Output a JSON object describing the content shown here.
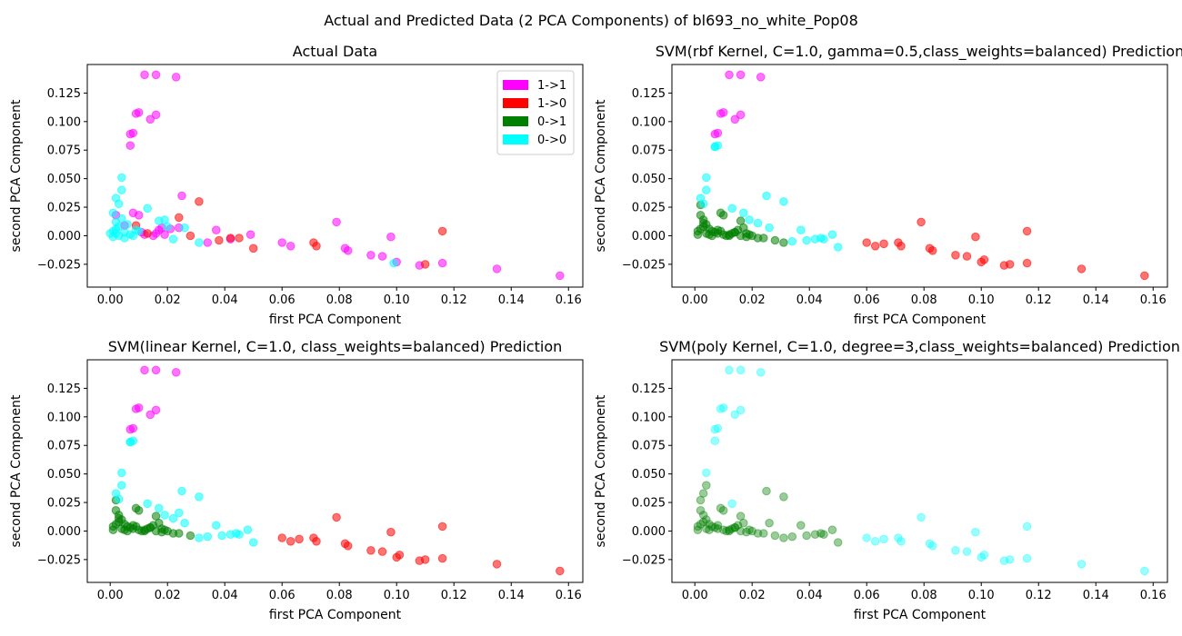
{
  "figure": {
    "suptitle": "Actual and Predicted Data (2 PCA Components) of bl693_no_white_Pop08"
  },
  "colors": {
    "1->1": "#ff00ff",
    "1->0": "#ff0000",
    "0->1": "#008000",
    "0->0": "#00ffff"
  },
  "legend": {
    "placement": "upper-right",
    "entries": [
      "1->1",
      "1->0",
      "0->1",
      "0->0"
    ]
  },
  "chart_data": [
    {
      "type": "scatter",
      "title": "Actual Data",
      "xlabel": "first PCA Component",
      "ylabel": "second PCA Component",
      "xlim": [
        -0.008,
        0.165
      ],
      "ylim": [
        -0.045,
        0.15
      ],
      "xticks": [
        "0.00",
        "0.02",
        "0.04",
        "0.06",
        "0.08",
        "0.10",
        "0.12",
        "0.14",
        "0.16"
      ],
      "yticks": [
        "−0.025",
        "0.000",
        "0.025",
        "0.050",
        "0.075",
        "0.100",
        "0.125"
      ],
      "legend": true,
      "alpha": 0.55,
      "series": [
        {
          "name": "1->1",
          "x": [
            0.012,
            0.016,
            0.023,
            0.009,
            0.01,
            0.016,
            0.014,
            0.008,
            0.007,
            0.007,
            0.025,
            0.01,
            0.008,
            0.012,
            0.016,
            0.018,
            0.002,
            0.005,
            0.011,
            0.017,
            0.019,
            0.015,
            0.021,
            0.024,
            0.037,
            0.042,
            0.049,
            0.06,
            0.063,
            0.079,
            0.082,
            0.083,
            0.091,
            0.095,
            0.098,
            0.1,
            0.108,
            0.116,
            0.135,
            0.157,
            0.034
          ],
          "y": [
            0.141,
            0.141,
            0.139,
            0.107,
            0.108,
            0.106,
            0.102,
            0.09,
            0.089,
            0.079,
            0.035,
            0.018,
            0.02,
            0.001,
            0.002,
            0.007,
            0.018,
            0.009,
            0.003,
            0.005,
            0.001,
            0.0,
            0.006,
            0.007,
            0.005,
            -0.003,
            0.001,
            -0.006,
            -0.009,
            0.012,
            -0.011,
            -0.013,
            -0.017,
            -0.018,
            -0.001,
            -0.023,
            -0.026,
            -0.024,
            -0.029,
            -0.035,
            -0.006
          ]
        },
        {
          "name": "1->0",
          "x": [
            0.031,
            0.028,
            0.024,
            0.013,
            0.038,
            0.042,
            0.045,
            0.05,
            0.071,
            0.072,
            0.11,
            0.116,
            0.009
          ],
          "y": [
            0.03,
            0.0,
            0.016,
            0.002,
            -0.004,
            -0.002,
            -0.002,
            -0.011,
            -0.006,
            -0.009,
            -0.025,
            0.004,
            0.009
          ]
        },
        {
          "name": "0->1",
          "x": [],
          "y": []
        },
        {
          "name": "0->0",
          "x": [
            0.004,
            0.004,
            0.002,
            0.003,
            0.001,
            0.013,
            0.019,
            0.017,
            0.02,
            0.022,
            0.026,
            0.031,
            0.004,
            0.006,
            0.002,
            0.0,
            0.001,
            0.003,
            0.005,
            0.007,
            0.002,
            0.003,
            0.008,
            0.01,
            0.099,
            0.001,
            0.002,
            0.009,
            0.005
          ],
          "y": [
            0.051,
            0.04,
            0.033,
            0.028,
            0.02,
            0.024,
            0.014,
            0.013,
            0.008,
            -0.003,
            0.007,
            -0.006,
            0.015,
            0.01,
            0.006,
            0.002,
            0.004,
            0.0,
            0.003,
            0.001,
            0.012,
            0.008,
            0.0,
            0.004,
            -0.024,
            -0.001,
            0.002,
            0.005,
            -0.002
          ]
        }
      ]
    },
    {
      "type": "scatter",
      "title": "SVM(rbf Kernel, C=1.0, gamma=0.5,class_weights=balanced) Prediction",
      "xlabel": "first PCA Component",
      "ylabel": "second PCA Component",
      "xlim": [
        -0.008,
        0.165
      ],
      "ylim": [
        -0.045,
        0.15
      ],
      "xticks": [
        "0.00",
        "0.02",
        "0.04",
        "0.06",
        "0.08",
        "0.10",
        "0.12",
        "0.14",
        "0.16"
      ],
      "yticks": [
        "−0.025",
        "0.000",
        "0.025",
        "0.050",
        "0.075",
        "0.100",
        "0.125"
      ],
      "legend": false,
      "alpha": 0.55,
      "series": [
        {
          "name": "1->1",
          "x": [
            0.012,
            0.016,
            0.023,
            0.009,
            0.01,
            0.016,
            0.014,
            0.008,
            0.007
          ],
          "y": [
            0.141,
            0.141,
            0.139,
            0.107,
            0.108,
            0.106,
            0.102,
            0.09,
            0.089
          ]
        },
        {
          "name": "1->0",
          "x": [
            0.06,
            0.063,
            0.066,
            0.071,
            0.072,
            0.079,
            0.082,
            0.083,
            0.091,
            0.095,
            0.098,
            0.1,
            0.101,
            0.108,
            0.11,
            0.116,
            0.116,
            0.135,
            0.157
          ],
          "y": [
            -0.006,
            -0.009,
            -0.007,
            -0.006,
            -0.009,
            0.012,
            -0.011,
            -0.013,
            -0.017,
            -0.018,
            -0.001,
            -0.023,
            -0.021,
            -0.026,
            -0.025,
            -0.024,
            0.004,
            -0.029,
            -0.035
          ]
        },
        {
          "name": "0->1",
          "x": [
            0.002,
            0.003,
            0.004,
            0.005,
            0.006,
            0.007,
            0.008,
            0.009,
            0.01,
            0.011,
            0.012,
            0.013,
            0.014,
            0.015,
            0.016,
            0.017,
            0.018,
            0.019,
            0.02,
            0.022,
            0.024,
            0.028,
            0.031,
            0.001,
            0.002,
            0.003,
            0.004,
            0.005,
            0.006,
            0.008,
            0.009,
            0.01,
            0.012,
            0.014,
            0.016,
            0.018,
            0.002,
            0.003,
            0.001
          ],
          "y": [
            0.018,
            0.014,
            0.01,
            0.006,
            0.004,
            0.003,
            0.002,
            0.02,
            0.018,
            0.0,
            0.001,
            0.002,
            0.003,
            0.005,
            0.013,
            0.007,
            -0.001,
            0.001,
            0.0,
            -0.002,
            -0.002,
            -0.004,
            -0.006,
            0.004,
            0.006,
            0.008,
            0.002,
            0.001,
            0.0,
            0.005,
            0.004,
            0.001,
            0.0,
            0.003,
            0.0,
            0.002,
            0.027,
            0.011,
            0.001
          ]
        },
        {
          "name": "0->0",
          "x": [
            0.004,
            0.004,
            0.002,
            0.003,
            0.007,
            0.013,
            0.019,
            0.017,
            0.022,
            0.025,
            0.026,
            0.031,
            0.034,
            0.037,
            0.039,
            0.042,
            0.044,
            0.045,
            0.048,
            0.05,
            0.008,
            0.007
          ],
          "y": [
            0.051,
            0.04,
            0.033,
            0.028,
            0.078,
            0.024,
            0.014,
            0.02,
            0.011,
            0.035,
            0.007,
            0.03,
            -0.005,
            0.005,
            -0.004,
            -0.003,
            -0.002,
            -0.003,
            0.001,
            -0.01,
            0.079,
            0.078
          ]
        }
      ]
    },
    {
      "type": "scatter",
      "title": "SVM(linear Kernel, C=1.0, class_weights=balanced) Prediction",
      "xlabel": "first PCA Component",
      "ylabel": "second PCA Component",
      "xlim": [
        -0.008,
        0.165
      ],
      "ylim": [
        -0.045,
        0.15
      ],
      "xticks": [
        "0.00",
        "0.02",
        "0.04",
        "0.06",
        "0.08",
        "0.10",
        "0.12",
        "0.14",
        "0.16"
      ],
      "yticks": [
        "−0.025",
        "0.000",
        "0.025",
        "0.050",
        "0.075",
        "0.100",
        "0.125"
      ],
      "legend": false,
      "alpha": 0.55,
      "series": [
        {
          "name": "1->1",
          "x": [
            0.012,
            0.016,
            0.023,
            0.009,
            0.01,
            0.016,
            0.014,
            0.008,
            0.007
          ],
          "y": [
            0.141,
            0.141,
            0.139,
            0.107,
            0.108,
            0.106,
            0.102,
            0.09,
            0.089
          ]
        },
        {
          "name": "1->0",
          "x": [
            0.06,
            0.063,
            0.066,
            0.071,
            0.072,
            0.079,
            0.082,
            0.083,
            0.091,
            0.095,
            0.098,
            0.1,
            0.101,
            0.108,
            0.11,
            0.116,
            0.116,
            0.135,
            0.157
          ],
          "y": [
            -0.006,
            -0.009,
            -0.007,
            -0.006,
            -0.009,
            0.012,
            -0.011,
            -0.013,
            -0.017,
            -0.018,
            -0.001,
            -0.023,
            -0.021,
            -0.026,
            -0.025,
            -0.024,
            0.004,
            -0.029,
            -0.035
          ]
        },
        {
          "name": "0->1",
          "x": [
            0.002,
            0.003,
            0.004,
            0.005,
            0.006,
            0.007,
            0.008,
            0.009,
            0.01,
            0.011,
            0.012,
            0.013,
            0.014,
            0.015,
            0.016,
            0.017,
            0.018,
            0.019,
            0.02,
            0.022,
            0.024,
            0.028,
            0.001,
            0.002,
            0.003,
            0.004,
            0.005,
            0.006,
            0.008,
            0.009,
            0.01,
            0.012,
            0.014,
            0.016,
            0.018,
            0.002,
            0.003,
            0.001
          ],
          "y": [
            0.018,
            0.014,
            0.01,
            0.006,
            0.004,
            0.003,
            0.002,
            0.02,
            0.018,
            0.0,
            0.001,
            0.002,
            0.003,
            0.005,
            0.013,
            0.007,
            -0.001,
            0.001,
            0.0,
            -0.002,
            -0.002,
            -0.004,
            0.004,
            0.006,
            0.008,
            0.002,
            0.001,
            0.0,
            0.005,
            0.004,
            0.001,
            0.0,
            0.003,
            0.0,
            0.002,
            0.027,
            0.011,
            0.001
          ]
        },
        {
          "name": "0->0",
          "x": [
            0.004,
            0.004,
            0.002,
            0.003,
            0.007,
            0.013,
            0.019,
            0.017,
            0.022,
            0.025,
            0.026,
            0.031,
            0.034,
            0.037,
            0.039,
            0.042,
            0.044,
            0.045,
            0.048,
            0.05,
            0.008,
            0.007,
            0.024,
            0.031
          ],
          "y": [
            0.051,
            0.04,
            0.033,
            0.028,
            0.078,
            0.024,
            0.014,
            0.02,
            0.011,
            0.035,
            0.007,
            0.03,
            -0.005,
            0.005,
            -0.004,
            -0.003,
            -0.002,
            -0.003,
            0.001,
            -0.01,
            0.079,
            0.078,
            0.016,
            -0.006
          ]
        }
      ]
    },
    {
      "type": "scatter",
      "title": "SVM(poly Kernel, C=1.0, degree=3,class_weights=balanced) Prediction",
      "xlabel": "first PCA Component",
      "ylabel": "second PCA Component",
      "xlim": [
        -0.008,
        0.165
      ],
      "ylim": [
        -0.045,
        0.15
      ],
      "xticks": [
        "0.00",
        "0.02",
        "0.04",
        "0.06",
        "0.08",
        "0.10",
        "0.12",
        "0.14",
        "0.16"
      ],
      "yticks": [
        "−0.025",
        "0.000",
        "0.025",
        "0.050",
        "0.075",
        "0.100",
        "0.125"
      ],
      "legend": false,
      "alpha": 0.4,
      "series": [
        {
          "name": "1->1",
          "x": [],
          "y": []
        },
        {
          "name": "1->0",
          "x": [],
          "y": []
        },
        {
          "name": "0->1",
          "x": [
            0.002,
            0.003,
            0.004,
            0.005,
            0.006,
            0.007,
            0.008,
            0.009,
            0.01,
            0.011,
            0.012,
            0.013,
            0.014,
            0.015,
            0.016,
            0.017,
            0.018,
            0.019,
            0.02,
            0.022,
            0.024,
            0.025,
            0.026,
            0.028,
            0.031,
            0.034,
            0.037,
            0.039,
            0.042,
            0.044,
            0.045,
            0.048,
            0.05,
            0.001,
            0.002,
            0.003,
            0.004,
            0.005,
            0.008,
            0.01,
            0.012,
            0.014,
            0.016,
            0.002,
            0.003,
            0.001,
            0.004,
            0.031
          ],
          "y": [
            0.018,
            0.014,
            0.01,
            0.006,
            0.004,
            0.003,
            0.002,
            0.02,
            0.018,
            0.0,
            0.001,
            0.002,
            0.003,
            0.005,
            0.013,
            0.007,
            -0.001,
            0.001,
            0.0,
            -0.002,
            -0.002,
            0.035,
            0.007,
            -0.004,
            -0.006,
            -0.005,
            0.005,
            -0.004,
            -0.003,
            -0.002,
            -0.003,
            0.001,
            -0.01,
            0.004,
            0.006,
            0.008,
            0.002,
            0.001,
            0.005,
            0.001,
            0.0,
            0.003,
            0.0,
            0.027,
            0.033,
            0.001,
            0.04,
            0.03
          ]
        },
        {
          "name": "0->0",
          "x": [
            0.012,
            0.016,
            0.023,
            0.009,
            0.01,
            0.016,
            0.014,
            0.008,
            0.007,
            0.007,
            0.004,
            0.06,
            0.063,
            0.066,
            0.071,
            0.072,
            0.079,
            0.082,
            0.083,
            0.091,
            0.095,
            0.098,
            0.1,
            0.101,
            0.108,
            0.11,
            0.116,
            0.116,
            0.135,
            0.157,
            0.013
          ],
          "y": [
            0.141,
            0.141,
            0.139,
            0.107,
            0.108,
            0.106,
            0.102,
            0.09,
            0.089,
            0.079,
            0.051,
            -0.006,
            -0.009,
            -0.007,
            -0.006,
            -0.009,
            0.012,
            -0.011,
            -0.013,
            -0.017,
            -0.018,
            -0.001,
            -0.023,
            -0.021,
            -0.026,
            -0.025,
            -0.024,
            0.004,
            -0.029,
            -0.035,
            0.024
          ]
        }
      ]
    }
  ]
}
